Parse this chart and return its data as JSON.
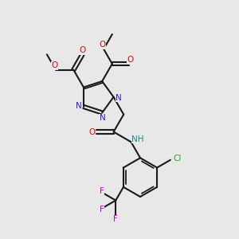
{
  "bg_color": "#e8e8e8",
  "bond_color": "#1a1a1a",
  "N_color": "#2222cc",
  "O_color": "#cc1111",
  "F_color": "#cc00cc",
  "Cl_color": "#22aa22",
  "NH_color": "#228888",
  "bond_lw": 1.5,
  "font_size": 7.5,
  "xlim": [
    0,
    10
  ],
  "ylim": [
    0,
    10
  ]
}
